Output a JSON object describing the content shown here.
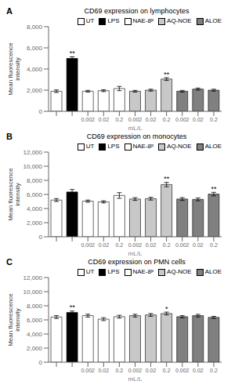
{
  "chart_data": [
    {
      "type": "bar",
      "panel_label": "A",
      "title": "CD69 expression on lymphocytes",
      "ylabel": "Mean fluorescence\nintensity",
      "xlabel": "mL/L",
      "categories": [
        null,
        null,
        "0.002",
        "0.02",
        "0.2",
        "0.002",
        "0.02",
        "0.2",
        "0.002",
        "0.02",
        "0.2"
      ],
      "series": [
        {
          "name": "UT",
          "color": "white",
          "values": [
            1900,
            null,
            null,
            null,
            null,
            null,
            null,
            null,
            null,
            null,
            null
          ],
          "errors": [
            120,
            null,
            null,
            null,
            null,
            null,
            null,
            null,
            null,
            null,
            null
          ]
        },
        {
          "name": "LPS",
          "color": "black",
          "values": [
            null,
            5000,
            null,
            null,
            null,
            null,
            null,
            null,
            null,
            null,
            null
          ],
          "errors": [
            null,
            150,
            null,
            null,
            null,
            null,
            null,
            null,
            null,
            null,
            null
          ]
        },
        {
          "name": "NAE-8ᵖ",
          "color": "white",
          "values": [
            null,
            null,
            1900,
            1950,
            2150,
            null,
            null,
            null,
            null,
            null,
            null
          ],
          "errors": [
            null,
            null,
            80,
            90,
            200,
            null,
            null,
            null,
            null,
            null,
            null
          ]
        },
        {
          "name": "AQ-NOE",
          "color": "#c8c8c8",
          "values": [
            null,
            null,
            null,
            null,
            null,
            1900,
            2000,
            3050,
            null,
            null,
            null
          ],
          "errors": [
            null,
            null,
            null,
            null,
            null,
            80,
            90,
            130,
            null,
            null,
            null
          ]
        },
        {
          "name": "ALOE",
          "color": "#808080",
          "values": [
            null,
            null,
            null,
            null,
            null,
            null,
            null,
            null,
            1900,
            2100,
            2000
          ],
          "errors": [
            null,
            null,
            null,
            null,
            null,
            null,
            null,
            null,
            80,
            100,
            90
          ]
        }
      ],
      "annotations": [
        {
          "category_index": 1,
          "y": 5200,
          "text": "**"
        },
        {
          "category_index": 7,
          "y": 3200,
          "text": "**"
        }
      ],
      "ylim": [
        0,
        8000
      ],
      "yticks": [
        0,
        {
          "value": 2000,
          "label": "2,000"
        },
        {
          "value": 4000,
          "label": "4,000"
        },
        {
          "value": 6000,
          "label": "6,000"
        },
        {
          "value": 8000,
          "label": "8,000"
        }
      ],
      "grid": false,
      "legend": "upper right"
    },
    {
      "type": "bar",
      "panel_label": "B",
      "title": "CD69 expression on monocytes",
      "ylabel": "Mean fluorescence\nintensity",
      "xlabel": "mL/L",
      "categories": [
        null,
        null,
        "0.002",
        "0.02",
        "0.2",
        "0.002",
        "0.02",
        "0.2",
        "0.002",
        "0.02",
        "0.2"
      ],
      "series": [
        {
          "name": "UT",
          "color": "white",
          "values": [
            5200,
            null,
            null,
            null,
            null,
            null,
            null,
            null,
            null,
            null,
            null
          ],
          "errors": [
            200,
            null,
            null,
            null,
            null,
            null,
            null,
            null,
            null,
            null,
            null
          ]
        },
        {
          "name": "LPS",
          "color": "black",
          "values": [
            null,
            6350,
            null,
            null,
            null,
            null,
            null,
            null,
            null,
            null,
            null
          ],
          "errors": [
            null,
            350,
            null,
            null,
            null,
            null,
            null,
            null,
            null,
            null,
            null
          ]
        },
        {
          "name": "NAE-8ᵖ",
          "color": "white",
          "values": [
            null,
            null,
            5050,
            4950,
            5850,
            null,
            null,
            null,
            null,
            null,
            null
          ],
          "errors": [
            null,
            null,
            150,
            150,
            400,
            null,
            null,
            null,
            null,
            null,
            null
          ]
        },
        {
          "name": "AQ-NOE",
          "color": "#c8c8c8",
          "values": [
            null,
            null,
            null,
            null,
            null,
            5350,
            5400,
            7400,
            null,
            null,
            null
          ],
          "errors": [
            null,
            null,
            null,
            null,
            null,
            200,
            200,
            300,
            null,
            null,
            null
          ]
        },
        {
          "name": "ALOE",
          "color": "#808080",
          "values": [
            null,
            null,
            null,
            null,
            null,
            null,
            null,
            null,
            5350,
            5300,
            6050
          ],
          "errors": [
            null,
            null,
            null,
            null,
            null,
            null,
            null,
            null,
            200,
            200,
            250
          ]
        }
      ],
      "annotations": [
        {
          "category_index": 7,
          "y": 7750,
          "text": "**"
        },
        {
          "category_index": 10,
          "y": 6350,
          "text": "**"
        }
      ],
      "ylim": [
        0,
        12000
      ],
      "yticks": [
        0,
        {
          "value": 2000,
          "label": "2,000"
        },
        {
          "value": 4000,
          "label": "4,000"
        },
        {
          "value": 6000,
          "label": "6,000"
        },
        {
          "value": 8000,
          "label": "8,000"
        },
        {
          "value": 10000,
          "label": "10,000"
        },
        {
          "value": 12000,
          "label": "12,000"
        }
      ],
      "grid": false,
      "legend": "upper right"
    },
    {
      "type": "bar",
      "panel_label": "C",
      "title": "CD69 expression on PMN cells",
      "ylabel": "Mean fluorescence\nintensity",
      "xlabel": "mL/L",
      "categories": [
        null,
        null,
        "0.002",
        "0.02",
        "0.2",
        "0.002",
        "0.02",
        "0.2",
        "0.002",
        "0.02",
        "0.2"
      ],
      "series": [
        {
          "name": "UT",
          "color": "white",
          "values": [
            6400,
            null,
            null,
            null,
            null,
            null,
            null,
            null,
            null,
            null,
            null
          ],
          "errors": [
            200,
            null,
            null,
            null,
            null,
            null,
            null,
            null,
            null,
            null,
            null
          ]
        },
        {
          "name": "LPS",
          "color": "black",
          "values": [
            null,
            7050,
            null,
            null,
            null,
            null,
            null,
            null,
            null,
            null,
            null
          ],
          "errors": [
            null,
            200,
            null,
            null,
            null,
            null,
            null,
            null,
            null,
            null,
            null
          ]
        },
        {
          "name": "NAE-8ᵖ",
          "color": "white",
          "values": [
            null,
            null,
            6600,
            6100,
            6450,
            null,
            null,
            null,
            null,
            null,
            null
          ],
          "errors": [
            null,
            null,
            200,
            200,
            200,
            null,
            null,
            null,
            null,
            null,
            null
          ]
        },
        {
          "name": "AQ-NOE",
          "color": "#c8c8c8",
          "values": [
            null,
            null,
            null,
            null,
            null,
            6600,
            6700,
            6900,
            null,
            null,
            null
          ],
          "errors": [
            null,
            null,
            null,
            null,
            null,
            200,
            200,
            200,
            null,
            null,
            null
          ]
        },
        {
          "name": "ALOE",
          "color": "#808080",
          "values": [
            null,
            null,
            null,
            null,
            null,
            null,
            null,
            null,
            6450,
            6600,
            6350
          ],
          "errors": [
            null,
            null,
            null,
            null,
            null,
            null,
            null,
            null,
            150,
            180,
            150
          ]
        }
      ],
      "annotations": [
        {
          "category_index": 1,
          "y": 7300,
          "text": "**"
        },
        {
          "category_index": 7,
          "y": 7100,
          "text": "*"
        }
      ],
      "ylim": [
        0,
        12000
      ],
      "yticks": [
        0,
        {
          "value": 2000,
          "label": "2,000"
        },
        {
          "value": 4000,
          "label": "4,000"
        },
        {
          "value": 6000,
          "label": "6,000"
        },
        {
          "value": 8000,
          "label": "8,000"
        },
        {
          "value": 10000,
          "label": "10,000"
        },
        {
          "value": 12000,
          "label": "12,000"
        }
      ],
      "grid": false,
      "legend": "upper right"
    }
  ]
}
